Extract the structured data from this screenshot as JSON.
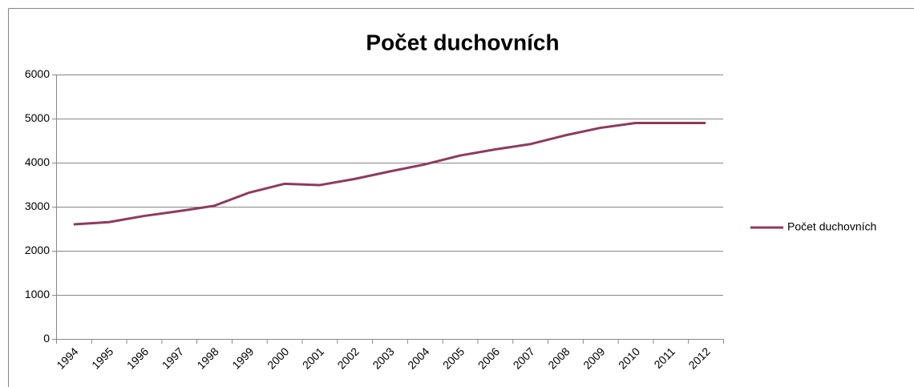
{
  "chart_data": {
    "type": "line",
    "title": "Počet duchovních",
    "categories": [
      "1994",
      "1995",
      "1996",
      "1997",
      "1998",
      "1999",
      "2000",
      "2001",
      "2002",
      "2003",
      "2004",
      "2005",
      "2006",
      "2007",
      "2008",
      "2009",
      "2010",
      "2011",
      "2012"
    ],
    "series": [
      {
        "name": "Počet duchovních",
        "color": "#8e3a5f",
        "values": [
          2600,
          2650,
          2790,
          2900,
          3020,
          3320,
          3520,
          3490,
          3630,
          3800,
          3960,
          4160,
          4300,
          4420,
          4620,
          4790,
          4900,
          4900,
          4900
        ]
      }
    ],
    "ylim": [
      0,
      6000
    ],
    "yticks": [
      0,
      1000,
      2000,
      3000,
      4000,
      5000,
      6000
    ],
    "grid": true,
    "legend": "right"
  }
}
